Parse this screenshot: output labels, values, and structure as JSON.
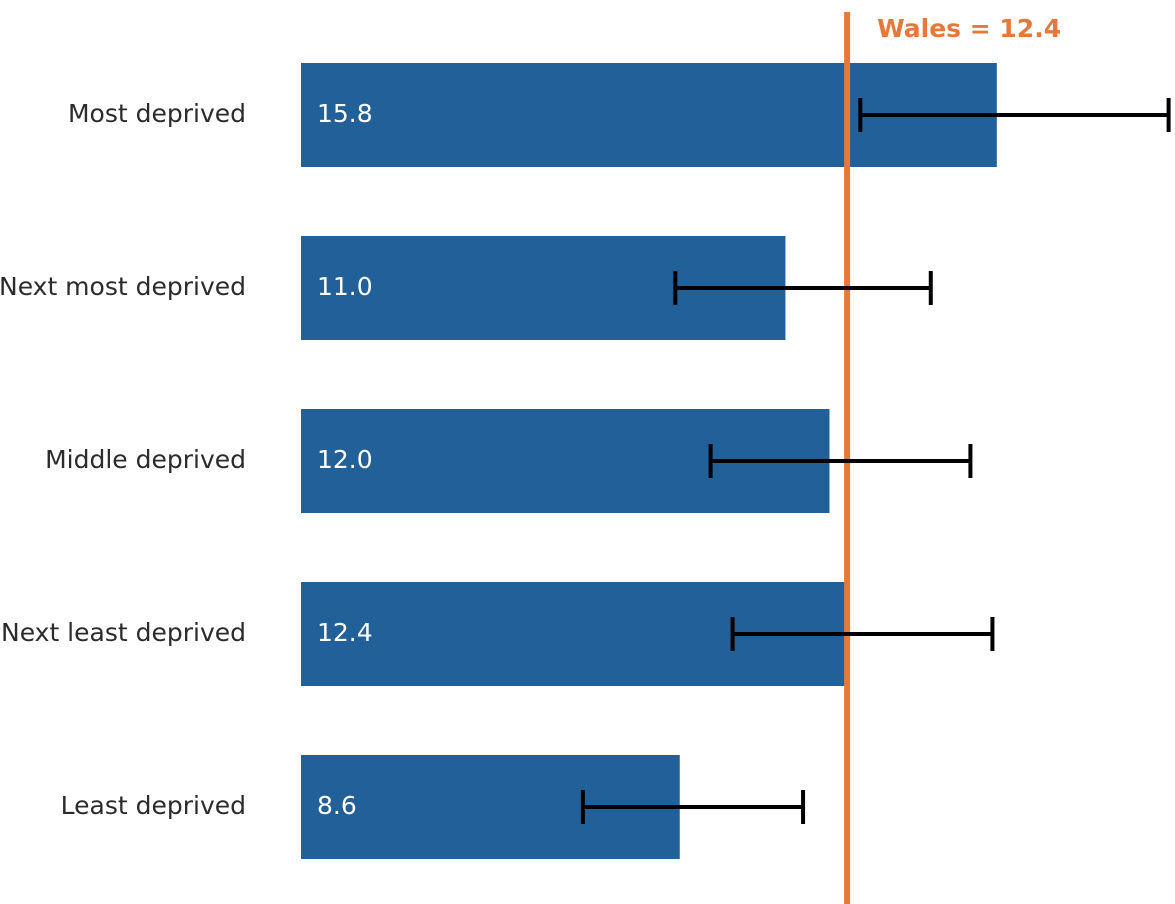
{
  "chart_data": {
    "type": "bar",
    "orientation": "horizontal",
    "categories": [
      "Most deprived",
      "Next most deprived",
      "Middle deprived",
      "Next least deprived",
      "Least deprived"
    ],
    "values": [
      15.8,
      11.0,
      12.0,
      12.4,
      8.6
    ],
    "value_labels": [
      "15.8",
      "11.0",
      "12.0",
      "12.4",
      "8.6"
    ],
    "ci_lower": [
      12.7,
      8.5,
      9.3,
      9.8,
      6.4
    ],
    "ci_upper": [
      19.7,
      14.3,
      15.2,
      15.7,
      11.4
    ],
    "reference": {
      "label": "Wales = 12.4",
      "value": 12.4,
      "color": "#e8783a"
    },
    "xlim": [
      0,
      19.8
    ],
    "bar_color": "#22609a",
    "error_bar_color": "#000000",
    "grid": false,
    "legend": "none",
    "title": "",
    "xlabel": "",
    "ylabel": ""
  }
}
